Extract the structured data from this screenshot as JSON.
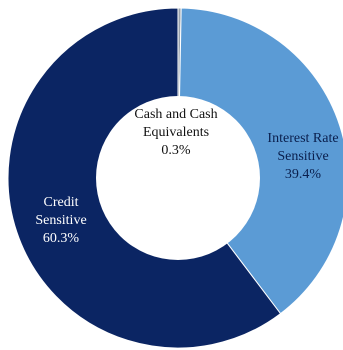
{
  "chart_data": {
    "type": "pie",
    "variant": "donut",
    "title": "",
    "legend": "none",
    "slices": [
      {
        "key": "cash",
        "label_lines": [
          "Cash and Cash",
          "Equivalents"
        ],
        "value": 0.3,
        "value_label": "0.3%",
        "color": "#9aa3ad",
        "label_color": "#111111"
      },
      {
        "key": "interest",
        "label_lines": [
          "Interest Rate",
          "Sensitive"
        ],
        "value": 39.4,
        "value_label": "39.4%",
        "color": "#5b9bd5",
        "label_color": "#0a1f4d"
      },
      {
        "key": "credit",
        "label_lines": [
          "Credit",
          "Sensitive"
        ],
        "value": 60.3,
        "value_label": "60.3%",
        "color": "#0b2563",
        "label_color": "#ffffff"
      }
    ]
  }
}
